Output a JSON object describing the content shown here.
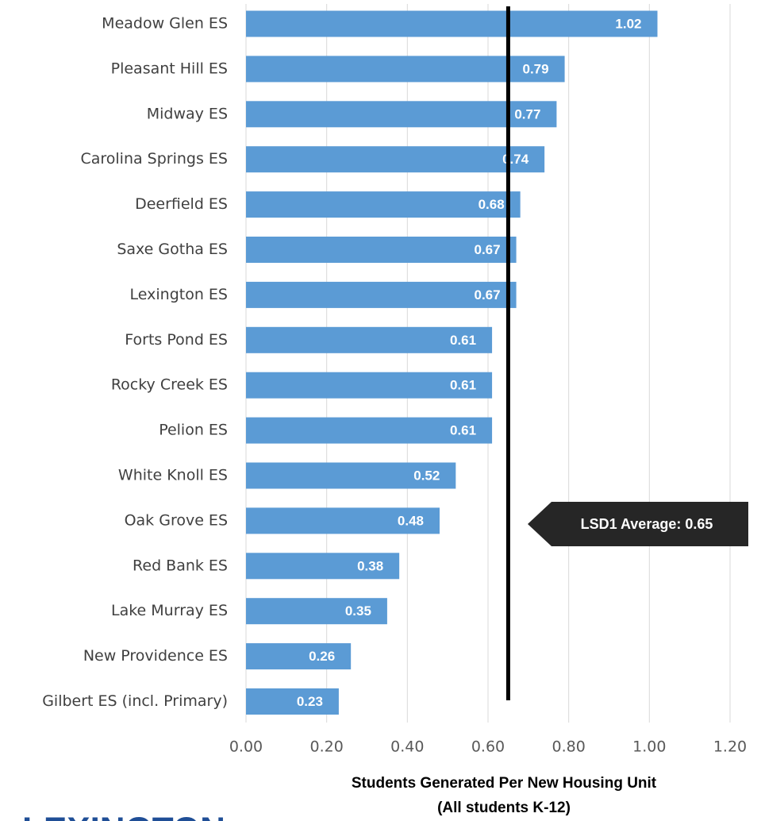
{
  "chart_data": {
    "type": "hbar",
    "categories": [
      "Meadow Glen ES",
      "Pleasant Hill ES",
      "Midway ES",
      "Carolina Springs ES",
      "Deerfield ES",
      "Saxe Gotha ES",
      "Lexington ES",
      "Forts Pond ES",
      "Rocky Creek ES",
      "Pelion ES",
      "White Knoll ES",
      "Oak Grove ES",
      "Red Bank ES",
      "Lake Murray ES",
      "New Providence ES",
      "Gilbert ES (incl. Primary)"
    ],
    "values": [
      1.02,
      0.79,
      0.77,
      0.74,
      0.68,
      0.67,
      0.67,
      0.61,
      0.61,
      0.61,
      0.52,
      0.48,
      0.38,
      0.35,
      0.26,
      0.23
    ],
    "color": "#5b9bd5",
    "xlim": [
      0,
      1.2
    ],
    "xticks": [
      {
        "value": 0,
        "label": "0.00"
      },
      {
        "value": 0.2,
        "label": "0.20"
      },
      {
        "value": 0.4,
        "label": "0.40"
      },
      {
        "value": 0.6,
        "label": "0.60"
      },
      {
        "value": 0.8,
        "label": "0.80"
      },
      {
        "value": 1,
        "label": "1.00"
      },
      {
        "value": 1.2,
        "label": "1.20"
      }
    ],
    "grid": true,
    "xlabel": [
      "Students Generated Per New Housing Unit",
      "(All students K-12)"
    ],
    "average_line": 0.65,
    "annotation": "LSD1 Average: 0.65"
  },
  "logo": "LEXINGTON"
}
